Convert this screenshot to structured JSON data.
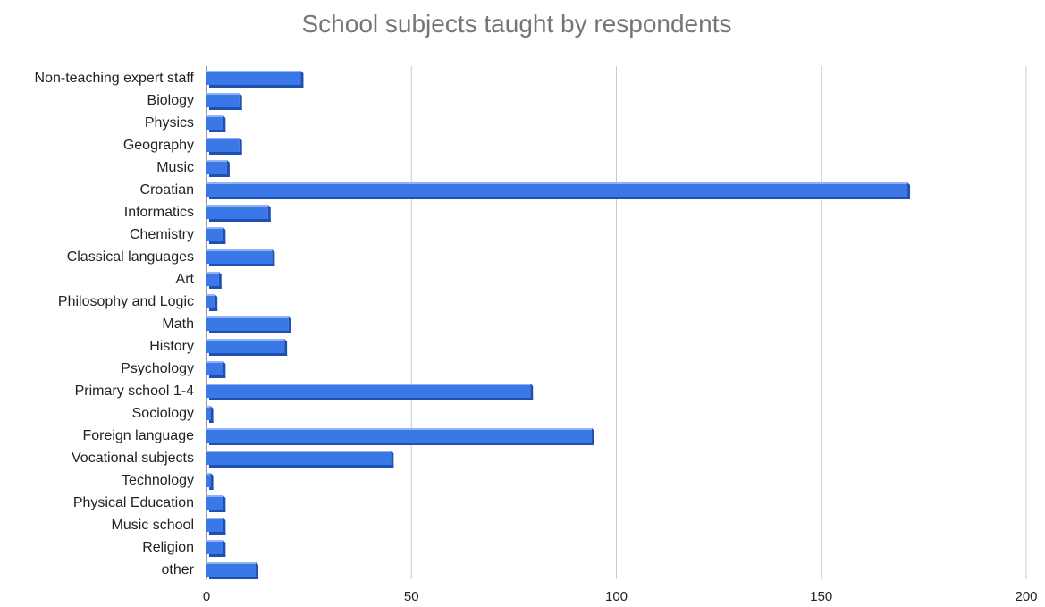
{
  "chart_data": {
    "type": "bar",
    "orientation": "horizontal",
    "title": "School subjects taught by respondents",
    "categories": [
      "Non-teaching expert staff",
      "Biology",
      "Physics",
      "Geography",
      "Music",
      "Croatian",
      "Informatics",
      "Chemistry",
      "Classical languages",
      "Art",
      "Philosophy and Logic",
      "Math",
      "History",
      "Psychology",
      "Primary school 1-4",
      "Sociology",
      "Foreign language",
      "Vocational subjects",
      "Technology",
      "Physical Education",
      "Music school",
      "Religion",
      "other"
    ],
    "values": [
      23,
      8,
      4,
      8,
      5,
      171,
      15,
      4,
      16,
      3,
      2,
      20,
      19,
      4,
      79,
      1,
      94,
      45,
      1,
      4,
      4,
      4,
      12
    ],
    "xlim": [
      0,
      200
    ],
    "xticks": [
      "0",
      "50",
      "100",
      "150",
      "200"
    ],
    "grid": true,
    "colors": {
      "bar": "#3b78e7",
      "bar_shadow": "#1e50b4",
      "bar_highlight": "#8fb4f5",
      "grid": "#cccccc",
      "title": "#757575"
    }
  }
}
